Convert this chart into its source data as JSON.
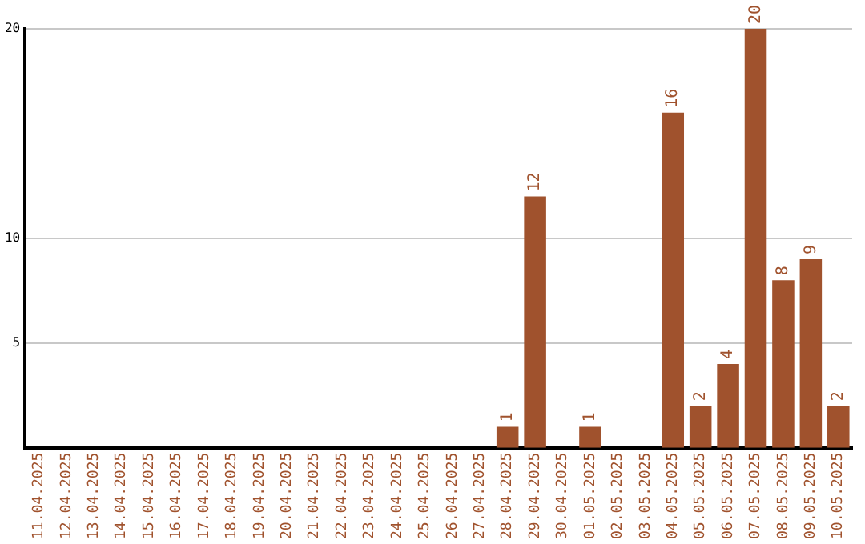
{
  "chart_data": {
    "type": "bar",
    "categories": [
      "11.04.2025",
      "12.04.2025",
      "13.04.2025",
      "14.04.2025",
      "15.04.2025",
      "16.04.2025",
      "17.04.2025",
      "18.04.2025",
      "19.04.2025",
      "20.04.2025",
      "21.04.2025",
      "22.04.2025",
      "23.04.2025",
      "24.04.2025",
      "25.04.2025",
      "26.04.2025",
      "27.04.2025",
      "28.04.2025",
      "29.04.2025",
      "30.04.2025",
      "01.05.2025",
      "02.05.2025",
      "03.05.2025",
      "04.05.2025",
      "05.05.2025",
      "06.05.2025",
      "07.05.2025",
      "08.05.2025",
      "09.05.2025",
      "10.05.2025"
    ],
    "values": [
      null,
      null,
      null,
      null,
      null,
      null,
      null,
      null,
      null,
      null,
      null,
      null,
      null,
      null,
      null,
      null,
      null,
      1,
      12,
      null,
      1,
      null,
      null,
      16,
      2,
      4,
      20,
      8,
      9,
      2
    ],
    "color": "#a0522d",
    "ylim": [
      0,
      20
    ],
    "yticks": [
      5,
      10,
      20
    ],
    "grid": "y",
    "data_labels": true,
    "legend": false
  }
}
